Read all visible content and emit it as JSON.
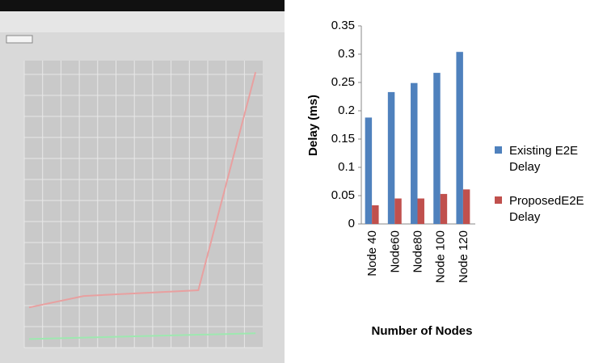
{
  "chart_data": [
    {
      "type": "line",
      "series": [
        {
          "color": "#e8a0a0",
          "x": [
            0.2,
            2.5,
            7.3,
            9.7
          ],
          "values": [
            14,
            18,
            20,
            96
          ]
        },
        {
          "color": "#9ee8b0",
          "x": [
            0.2,
            9.7
          ],
          "values": [
            3,
            5
          ]
        }
      ],
      "xlim": [
        0,
        10
      ],
      "ylim": [
        0,
        100
      ],
      "grid": true
    },
    {
      "type": "bar",
      "ylabel": "Delay (ms)",
      "xlabel": "Number of Nodes",
      "categories": [
        "Node 40",
        "Node60",
        "Node80",
        "Node 100",
        "Node 120"
      ],
      "series": [
        {
          "name": "Existing E2E Delay",
          "color": "#4f81bd",
          "values": [
            0.188,
            0.233,
            0.249,
            0.267,
            0.304
          ]
        },
        {
          "name": "ProposedE2E Delay",
          "color": "#c0504d",
          "values": [
            0.033,
            0.045,
            0.045,
            0.053,
            0.061
          ]
        }
      ],
      "ylim": [
        0,
        0.35
      ],
      "yticks": [
        0,
        0.05,
        0.1,
        0.15,
        0.2,
        0.25,
        0.3,
        0.35
      ],
      "legend": "right"
    }
  ]
}
